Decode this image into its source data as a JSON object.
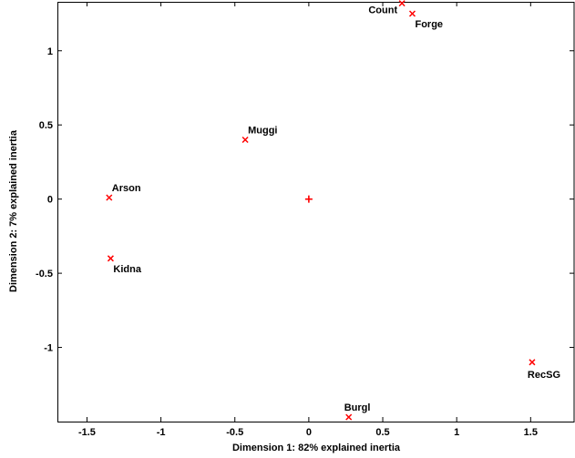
{
  "chart_data": {
    "type": "scatter",
    "xlabel": "Dimension 1: 82% explained inertia",
    "ylabel": "Dimension 2: 7% explained inertia",
    "xlim": [
      -1.7,
      1.8
    ],
    "ylim": [
      -1.5,
      1.33
    ],
    "xticks": [
      -1.5,
      -1,
      -0.5,
      0,
      0.5,
      1,
      1.5
    ],
    "xtick_labels": [
      "-1.5",
      "-1",
      "-0.5",
      "0",
      "0.5",
      "1",
      "1.5"
    ],
    "yticks": [
      -1,
      -0.5,
      0,
      0.5,
      1
    ],
    "ytick_labels": [
      "-1",
      "-0.5",
      "0",
      "0.5",
      "1"
    ],
    "grid": false,
    "marker_color": "#ff0000",
    "origin_marker": {
      "x": 0,
      "y": 0,
      "marker": "plus"
    },
    "points": [
      {
        "label": "Count",
        "x": 0.63,
        "y": 1.32,
        "anchor": "left"
      },
      {
        "label": "Forge",
        "x": 0.7,
        "y": 1.25,
        "anchor": "below-right"
      },
      {
        "label": "Muggi",
        "x": -0.43,
        "y": 0.4,
        "anchor": "above-right"
      },
      {
        "label": "Arson",
        "x": -1.35,
        "y": 0.01,
        "anchor": "above-right"
      },
      {
        "label": "Kidna",
        "x": -1.34,
        "y": -0.4,
        "anchor": "below-right"
      },
      {
        "label": "RecSG",
        "x": 1.51,
        "y": -1.1,
        "anchor": "below"
      },
      {
        "label": "Burgl",
        "x": 0.27,
        "y": -1.47,
        "anchor": "above"
      }
    ]
  }
}
